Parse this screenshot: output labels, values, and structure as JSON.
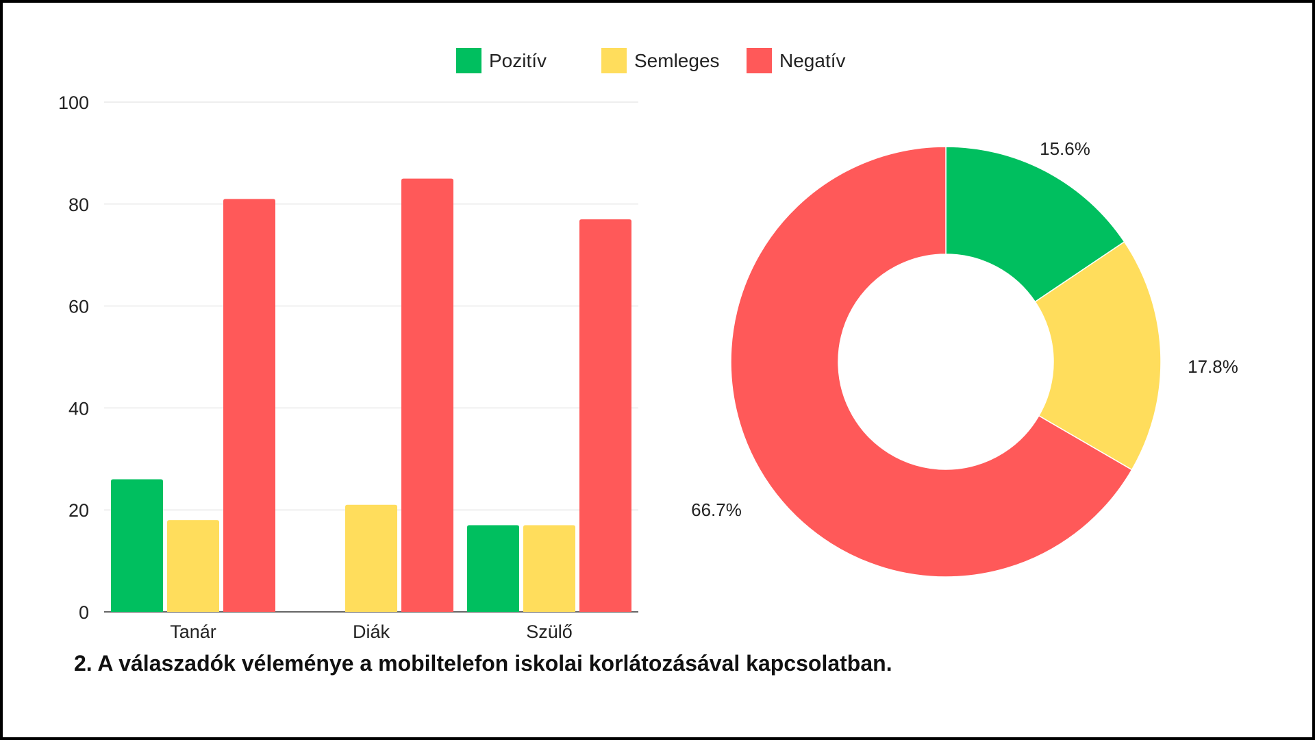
{
  "caption": "2. A válaszadók véleménye a mobiltelefon iskolai korlátozásával kapcsolatban.",
  "colors": {
    "Pozitív": "#00BF5F",
    "Semleges": "#FFDD5C",
    "Negatív": "#FF5959",
    "grid": "#E3E3E3",
    "axis": "#333333"
  },
  "chart_data": [
    {
      "type": "bar",
      "categories": [
        "Tanár",
        "Diák",
        "Szülő"
      ],
      "series": [
        {
          "name": "Pozitív",
          "values": [
            26,
            0,
            17
          ]
        },
        {
          "name": "Semleges",
          "values": [
            18,
            21,
            17
          ]
        },
        {
          "name": "Negatív",
          "values": [
            81,
            85,
            77
          ]
        }
      ],
      "ylim": [
        0,
        100
      ],
      "yticks": [
        0,
        20,
        40,
        60,
        80,
        100
      ],
      "grid": true,
      "legend": [
        "Pozitív",
        "Semleges",
        "Negatív"
      ],
      "legend_position": "top"
    },
    {
      "type": "pie",
      "donut": true,
      "labels": [
        "Pozitív",
        "Semleges",
        "Negatív"
      ],
      "values": [
        15.6,
        17.8,
        66.7
      ],
      "value_labels": [
        "15.6%",
        "17.8%",
        "66.7%"
      ]
    }
  ]
}
